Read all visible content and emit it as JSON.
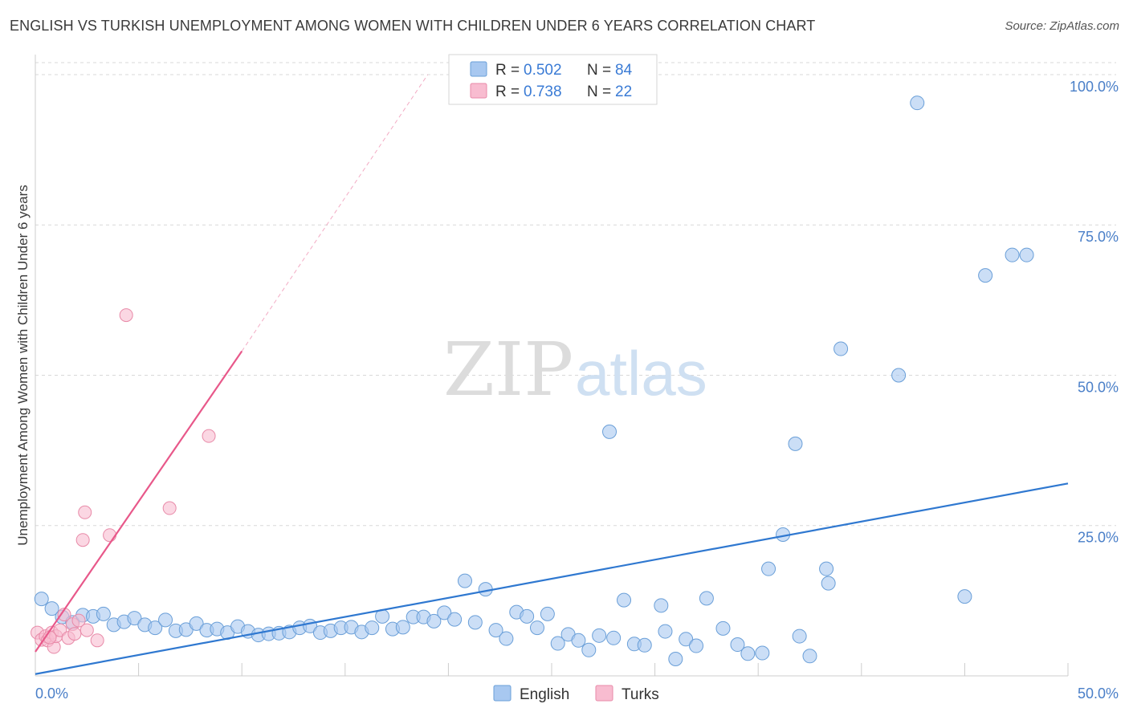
{
  "title": "ENGLISH VS TURKISH UNEMPLOYMENT AMONG WOMEN WITH CHILDREN UNDER 6 YEARS CORRELATION CHART",
  "source": "Source: ZipAtlas.com",
  "watermark": {
    "zip": "ZIP",
    "atlas": "atlas"
  },
  "chart_data": {
    "type": "scatter",
    "ylabel": "Unemployment Among Women with Children Under 6 years",
    "xlim": [
      0,
      50
    ],
    "ylim": [
      0,
      102
    ],
    "x_tick_labels": [
      {
        "value": 0,
        "label": "0.0%"
      },
      {
        "value": 50,
        "label": "50.0%"
      }
    ],
    "y_tick_labels": [
      {
        "value": 25,
        "label": "25.0%"
      },
      {
        "value": 50,
        "label": "50.0%"
      },
      {
        "value": 75,
        "label": "75.0%"
      },
      {
        "value": 100,
        "label": "100.0%"
      }
    ],
    "grid": true,
    "legend_position": "bottom-center",
    "stats_position": "top-center",
    "series": [
      {
        "name": "English",
        "color": "#a8c8f0",
        "stroke": "#6a9fd8",
        "line_color": "#2f78d0",
        "r_label": "R =",
        "r_value": "0.502",
        "n_label": "N =",
        "n_value": "84",
        "trend": {
          "x0": 0,
          "y0": 0.3,
          "x1": 50,
          "y1": 32.0,
          "dashed_to": null
        },
        "points": [
          [
            0.3,
            12.8
          ],
          [
            0.8,
            11.2
          ],
          [
            1.3,
            9.8
          ],
          [
            1.8,
            8.9
          ],
          [
            2.3,
            10.1
          ],
          [
            2.8,
            9.9
          ],
          [
            3.3,
            10.3
          ],
          [
            3.8,
            8.5
          ],
          [
            4.3,
            9.0
          ],
          [
            4.8,
            9.6
          ],
          [
            5.3,
            8.5
          ],
          [
            5.8,
            8.0
          ],
          [
            6.3,
            9.3
          ],
          [
            6.8,
            7.5
          ],
          [
            7.3,
            7.7
          ],
          [
            7.8,
            8.7
          ],
          [
            8.3,
            7.6
          ],
          [
            8.8,
            7.8
          ],
          [
            9.3,
            7.2
          ],
          [
            9.8,
            8.2
          ],
          [
            10.3,
            7.4
          ],
          [
            10.8,
            6.8
          ],
          [
            11.3,
            7.0
          ],
          [
            11.8,
            7.1
          ],
          [
            12.3,
            7.3
          ],
          [
            12.8,
            8.0
          ],
          [
            13.3,
            8.3
          ],
          [
            13.8,
            7.2
          ],
          [
            14.3,
            7.5
          ],
          [
            14.8,
            8.0
          ],
          [
            15.3,
            8.1
          ],
          [
            15.8,
            7.3
          ],
          [
            16.3,
            8.0
          ],
          [
            16.8,
            9.9
          ],
          [
            17.3,
            7.8
          ],
          [
            17.8,
            8.1
          ],
          [
            18.3,
            9.8
          ],
          [
            18.8,
            9.8
          ],
          [
            19.3,
            9.1
          ],
          [
            19.8,
            10.5
          ],
          [
            20.3,
            9.4
          ],
          [
            20.8,
            15.8
          ],
          [
            21.3,
            8.9
          ],
          [
            21.8,
            14.4
          ],
          [
            22.3,
            7.6
          ],
          [
            22.8,
            6.2
          ],
          [
            23.3,
            10.6
          ],
          [
            23.8,
            9.9
          ],
          [
            24.3,
            8.0
          ],
          [
            24.8,
            10.3
          ],
          [
            25.3,
            5.4
          ],
          [
            25.8,
            6.9
          ],
          [
            26.3,
            5.9
          ],
          [
            26.8,
            4.3
          ],
          [
            27.3,
            6.7
          ],
          [
            27.8,
            40.6
          ],
          [
            28.0,
            6.3
          ],
          [
            28.5,
            12.6
          ],
          [
            29.0,
            5.3
          ],
          [
            29.5,
            5.1
          ],
          [
            30.3,
            11.7
          ],
          [
            30.5,
            7.4
          ],
          [
            31.0,
            2.8
          ],
          [
            31.5,
            6.1
          ],
          [
            32.0,
            5.0
          ],
          [
            32.5,
            12.9
          ],
          [
            33.3,
            7.9
          ],
          [
            34.0,
            5.2
          ],
          [
            34.5,
            3.7
          ],
          [
            35.2,
            3.8
          ],
          [
            35.5,
            17.8
          ],
          [
            36.2,
            23.5
          ],
          [
            37.0,
            6.6
          ],
          [
            37.5,
            3.3
          ],
          [
            38.3,
            17.8
          ],
          [
            38.4,
            15.4
          ],
          [
            39.0,
            54.4
          ],
          [
            41.8,
            50.0
          ],
          [
            42.7,
            95.3
          ],
          [
            45.0,
            13.2
          ],
          [
            46.0,
            66.6
          ],
          [
            47.3,
            70.0
          ],
          [
            48.0,
            70.0
          ],
          [
            36.8,
            38.6
          ]
        ]
      },
      {
        "name": "Turks",
        "color": "#f8bcd0",
        "stroke": "#e88aa8",
        "line_color": "#e8588a",
        "r_label": "R =",
        "r_value": "0.738",
        "n_label": "N =",
        "n_value": "22",
        "trend": {
          "x0": 0,
          "y0": 4.0,
          "x1": 10.0,
          "y1": 54.0,
          "dashed_to": [
            19.0,
            100.0
          ]
        },
        "points": [
          [
            0.1,
            7.2
          ],
          [
            0.3,
            6.0
          ],
          [
            0.5,
            6.6
          ],
          [
            0.6,
            5.9
          ],
          [
            0.8,
            7.2
          ],
          [
            0.9,
            4.8
          ],
          [
            1.0,
            6.6
          ],
          [
            1.2,
            7.6
          ],
          [
            1.4,
            10.2
          ],
          [
            1.6,
            6.3
          ],
          [
            1.8,
            8.6
          ],
          [
            1.9,
            7.0
          ],
          [
            2.1,
            9.2
          ],
          [
            2.3,
            22.6
          ],
          [
            2.4,
            27.2
          ],
          [
            2.5,
            7.6
          ],
          [
            3.0,
            5.9
          ],
          [
            3.6,
            23.4
          ],
          [
            4.4,
            60.0
          ],
          [
            6.5,
            27.9
          ],
          [
            8.4,
            39.9
          ],
          [
            0.7,
            6.4
          ]
        ]
      }
    ]
  }
}
